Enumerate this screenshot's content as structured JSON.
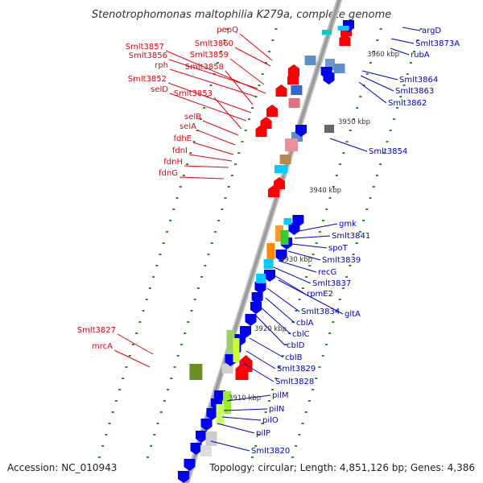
{
  "title": "Stenotrophomonas maltophilia K279a, complete genome",
  "footer": {
    "accession": "Accession: NC_010943",
    "topology": "Topology: circular; Length: 4,851,126 bp; Genes: 4,386"
  },
  "colors": {
    "forward_cds": "#ff0000",
    "reverse_cds": "#0000ee",
    "backbone": "#999999",
    "tick_green": "#2a8a2a",
    "label_forward": "#e8000b",
    "label_reverse": "#0000cc"
  },
  "scale_marks": [
    "3960 kbp",
    "3950 kbp",
    "3940 kbp",
    "3930 kbp",
    "3920 kbp",
    "3910 kbp"
  ],
  "left_labels": [
    "pepQ",
    "Smlt3860",
    "Smlt3857",
    "Smlt3859",
    "Smlt3856",
    "rph",
    "Smlt3858",
    "Smlt3852",
    "selD",
    "Smlt3853",
    "selB",
    "selA",
    "fdhE",
    "fdnI",
    "fdnH",
    "fdnG",
    "Smlt3827",
    "mrcA"
  ],
  "right_labels": [
    "argD",
    "Smlt3873A",
    "rubA",
    "Smlt3864",
    "Smlt3863",
    "Smlt3862",
    "Smlt3854",
    "gmk",
    "Smlt3841",
    "spoT",
    "Smlt3839",
    "recG",
    "Smlt3837",
    "rpmE2",
    "Smlt3834",
    "gltA",
    "cblA",
    "cblC",
    "cblD",
    "cblB",
    "Smlt3829",
    "Smlt3828",
    "pilM",
    "pilN",
    "pilO",
    "pilP",
    "Smlt3820"
  ]
}
